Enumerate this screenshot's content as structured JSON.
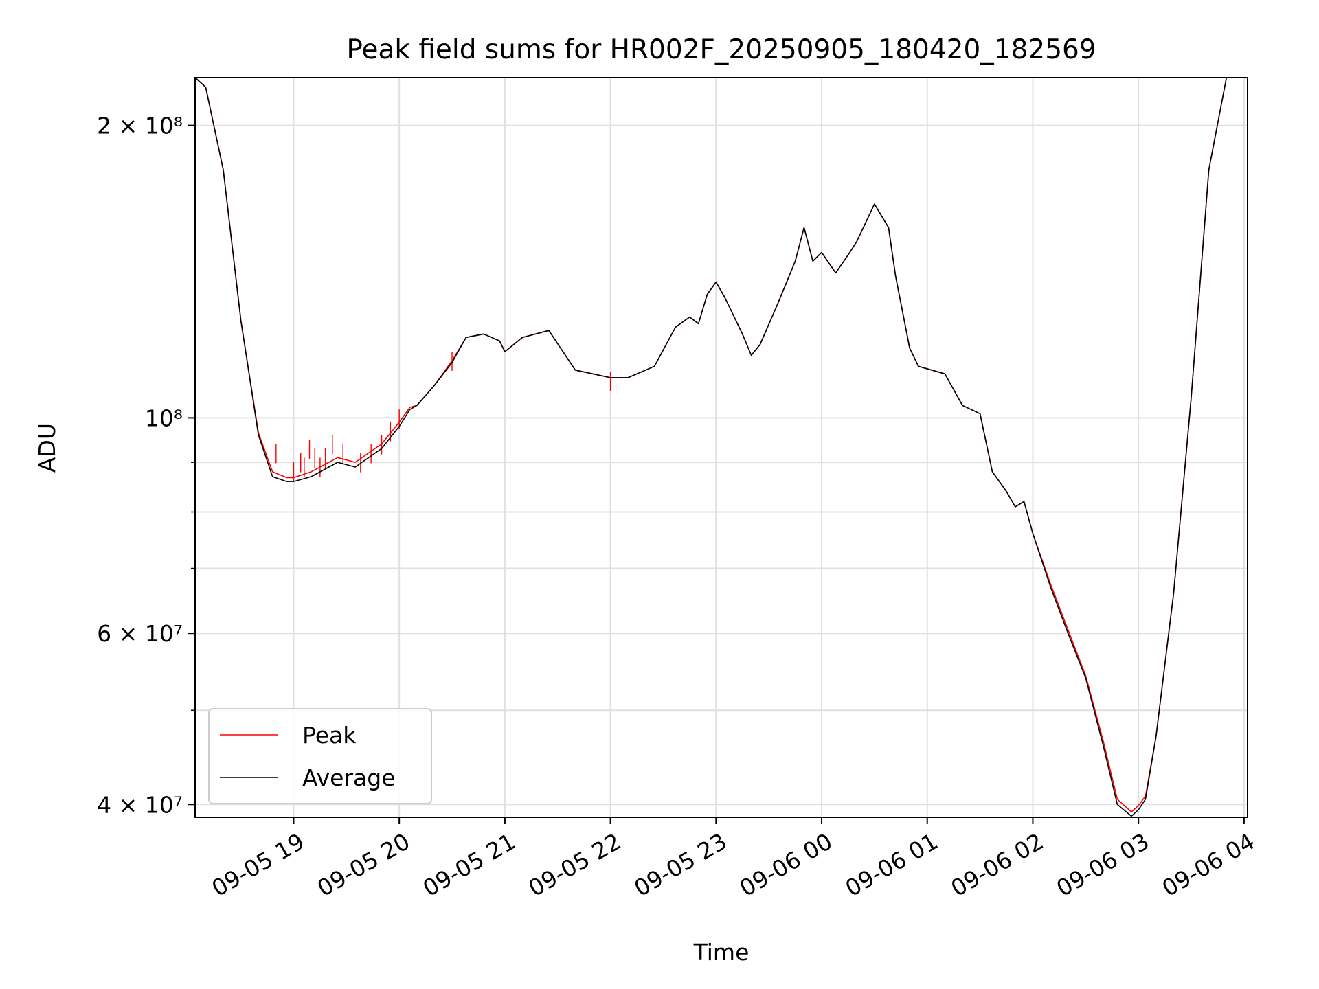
{
  "chart_data": {
    "type": "line",
    "title": "Peak field sums for HR002F_20250905_180420_182569",
    "xlabel": "Time",
    "ylabel": "ADU",
    "yscale": "log",
    "xlim": [
      "2025-09-05 18:04",
      "2025-09-06 04:02"
    ],
    "ylim": [
      38800000,
      224000000
    ],
    "grid": true,
    "legend": "lower-left",
    "x_ticks": [
      {
        "value": "2025-09-05 19:00",
        "label": "09-05 19"
      },
      {
        "value": "2025-09-05 20:00",
        "label": "09-05 20"
      },
      {
        "value": "2025-09-05 21:00",
        "label": "09-05 21"
      },
      {
        "value": "2025-09-05 22:00",
        "label": "09-05 22"
      },
      {
        "value": "2025-09-05 23:00",
        "label": "09-05 23"
      },
      {
        "value": "2025-09-06 00:00",
        "label": "09-06 00"
      },
      {
        "value": "2025-09-06 01:00",
        "label": "09-06 01"
      },
      {
        "value": "2025-09-06 02:00",
        "label": "09-06 02"
      },
      {
        "value": "2025-09-06 03:00",
        "label": "09-06 03"
      },
      {
        "value": "2025-09-06 04:00",
        "label": "09-06 04"
      }
    ],
    "y_ticks": [
      {
        "value": 200000000,
        "label": "2 × 10⁸"
      },
      {
        "value": 100000000,
        "label": "10⁸"
      },
      {
        "value": 60000000,
        "label": "6 × 10⁷"
      },
      {
        "value": 40000000,
        "label": "4 × 10⁷"
      }
    ],
    "y_minor_ticks": [
      50000000,
      70000000,
      80000000,
      90000000
    ],
    "series": [
      {
        "name": "Average",
        "color": "#000000",
        "x": [
          "2025-09-05 18:04",
          "2025-09-05 18:10",
          "2025-09-05 18:20",
          "2025-09-05 18:30",
          "2025-09-05 18:40",
          "2025-09-05 18:48",
          "2025-09-05 18:56",
          "2025-09-05 19:00",
          "2025-09-05 19:10",
          "2025-09-05 19:20",
          "2025-09-05 19:25",
          "2025-09-05 19:35",
          "2025-09-05 19:50",
          "2025-09-05 20:00",
          "2025-09-05 20:06",
          "2025-09-05 20:10",
          "2025-09-05 20:20",
          "2025-09-05 20:30",
          "2025-09-05 20:38",
          "2025-09-05 20:48",
          "2025-09-05 20:57",
          "2025-09-05 21:00",
          "2025-09-05 21:10",
          "2025-09-05 21:25",
          "2025-09-05 21:40",
          "2025-09-05 21:50",
          "2025-09-05 22:00",
          "2025-09-05 22:10",
          "2025-09-05 22:25",
          "2025-09-05 22:37",
          "2025-09-05 22:45",
          "2025-09-05 22:50",
          "2025-09-05 22:55",
          "2025-09-05 23:00",
          "2025-09-05 23:05",
          "2025-09-05 23:15",
          "2025-09-05 23:20",
          "2025-09-05 23:25",
          "2025-09-05 23:35",
          "2025-09-05 23:45",
          "2025-09-05 23:50",
          "2025-09-05 23:55",
          "2025-09-06 00:00",
          "2025-09-06 00:08",
          "2025-09-06 00:16",
          "2025-09-06 00:20",
          "2025-09-06 00:30",
          "2025-09-06 00:38",
          "2025-09-06 00:42",
          "2025-09-06 00:50",
          "2025-09-06 00:55",
          "2025-09-06 01:10",
          "2025-09-06 01:20",
          "2025-09-06 01:30",
          "2025-09-06 01:37",
          "2025-09-06 01:45",
          "2025-09-06 01:50",
          "2025-09-06 01:55",
          "2025-09-06 02:00",
          "2025-09-06 02:10",
          "2025-09-06 02:20",
          "2025-09-06 02:30",
          "2025-09-06 02:40",
          "2025-09-06 02:48",
          "2025-09-06 02:56",
          "2025-09-06 03:00",
          "2025-09-06 03:04",
          "2025-09-06 03:10",
          "2025-09-06 03:20",
          "2025-09-06 03:30",
          "2025-09-06 03:40",
          "2025-09-06 03:50",
          "2025-09-06 04:02"
        ],
        "y": [
          224000000,
          219000000,
          180000000,
          126000000,
          96000000,
          87000000,
          86000000,
          86000000,
          87000000,
          89000000,
          90000000,
          89000000,
          93000000,
          98000000,
          102000000,
          103000000,
          108000000,
          114000000,
          121000000,
          122000000,
          120000000,
          117000000,
          121000000,
          123000000,
          112000000,
          111000000,
          110000000,
          110000000,
          113000000,
          124000000,
          127000000,
          125000000,
          134000000,
          138000000,
          133000000,
          122000000,
          116000000,
          119000000,
          131000000,
          145000000,
          157000000,
          145000000,
          148000000,
          141000000,
          148000000,
          152000000,
          166000000,
          157000000,
          140000000,
          118000000,
          113000000,
          111000000,
          103000000,
          101000000,
          88000000,
          84000000,
          81000000,
          82000000,
          76000000,
          67000000,
          60000000,
          54000000,
          46000000,
          40000000,
          38900000,
          39500000,
          40500000,
          47000000,
          66000000,
          105000000,
          180000000,
          224000000,
          224000000
        ]
      },
      {
        "name": "Peak",
        "color": "#ff0000",
        "x": [
          "2025-09-05 18:04",
          "2025-09-05 18:10",
          "2025-09-05 18:20",
          "2025-09-05 18:30",
          "2025-09-05 18:40",
          "2025-09-05 18:48",
          "2025-09-05 18:56",
          "2025-09-05 19:00",
          "2025-09-05 19:10",
          "2025-09-05 19:20",
          "2025-09-05 19:25",
          "2025-09-05 19:35",
          "2025-09-05 19:50",
          "2025-09-05 20:00",
          "2025-09-05 20:06",
          "2025-09-05 20:10",
          "2025-09-05 20:20",
          "2025-09-05 20:30",
          "2025-09-05 20:38",
          "2025-09-05 20:48",
          "2025-09-05 20:57",
          "2025-09-05 21:00",
          "2025-09-05 21:10",
          "2025-09-05 21:25",
          "2025-09-05 21:40",
          "2025-09-05 21:50",
          "2025-09-05 22:00",
          "2025-09-05 22:10",
          "2025-09-05 22:25",
          "2025-09-05 22:37",
          "2025-09-05 22:45",
          "2025-09-05 22:50",
          "2025-09-05 22:55",
          "2025-09-05 23:00",
          "2025-09-05 23:05",
          "2025-09-05 23:15",
          "2025-09-05 23:20",
          "2025-09-05 23:25",
          "2025-09-05 23:35",
          "2025-09-05 23:45",
          "2025-09-05 23:50",
          "2025-09-05 23:55",
          "2025-09-06 00:00",
          "2025-09-06 00:08",
          "2025-09-06 00:16",
          "2025-09-06 00:20",
          "2025-09-06 00:30",
          "2025-09-06 00:38",
          "2025-09-06 00:42",
          "2025-09-06 00:50",
          "2025-09-06 00:55",
          "2025-09-06 01:10",
          "2025-09-06 01:20",
          "2025-09-06 01:30",
          "2025-09-06 01:37",
          "2025-09-06 01:45",
          "2025-09-06 01:50",
          "2025-09-06 01:55",
          "2025-09-06 02:00",
          "2025-09-06 02:10",
          "2025-09-06 02:20",
          "2025-09-06 02:30",
          "2025-09-06 02:40",
          "2025-09-06 02:48",
          "2025-09-06 02:56",
          "2025-09-06 03:00",
          "2025-09-06 03:04",
          "2025-09-06 03:10",
          "2025-09-06 03:20",
          "2025-09-06 03:30",
          "2025-09-06 03:40",
          "2025-09-06 03:50",
          "2025-09-06 04:02"
        ],
        "y": [
          224000000,
          219000000,
          180000000,
          126000000,
          96500000,
          88000000,
          86800000,
          86800000,
          88000000,
          90000000,
          91000000,
          90000000,
          94000000,
          99000000,
          102500000,
          103000000,
          108000000,
          114500000,
          121000000,
          122000000,
          120000000,
          117000000,
          121000000,
          123000000,
          112000000,
          111000000,
          110000000,
          110000000,
          113000000,
          124000000,
          127000000,
          125000000,
          134000000,
          138000000,
          133000000,
          122000000,
          116000000,
          119000000,
          131000000,
          145000000,
          157000000,
          145000000,
          148000000,
          141000000,
          148000000,
          152000000,
          166000000,
          157000000,
          140000000,
          118000000,
          113000000,
          111000000,
          103000000,
          101000000,
          88000000,
          84000000,
          81000000,
          82000000,
          76000000,
          67500000,
          60500000,
          54300000,
          46500000,
          40500000,
          39300000,
          39900000,
          40800000,
          47000000,
          66000000,
          105000000,
          180000000,
          224000000,
          224000000
        ],
        "spikes": [
          {
            "x": "2025-09-05 18:50",
            "y": 94000000
          },
          {
            "x": "2025-09-05 19:00",
            "y": 90000000
          },
          {
            "x": "2025-09-05 19:04",
            "y": 92000000
          },
          {
            "x": "2025-09-05 19:06",
            "y": 91000000
          },
          {
            "x": "2025-09-05 19:09",
            "y": 95000000
          },
          {
            "x": "2025-09-05 19:12",
            "y": 93000000
          },
          {
            "x": "2025-09-05 19:15",
            "y": 91000000
          },
          {
            "x": "2025-09-05 19:18",
            "y": 93000000
          },
          {
            "x": "2025-09-05 19:22",
            "y": 96000000
          },
          {
            "x": "2025-09-05 19:28",
            "y": 94000000
          },
          {
            "x": "2025-09-05 19:38",
            "y": 92000000
          },
          {
            "x": "2025-09-05 19:44",
            "y": 94000000
          },
          {
            "x": "2025-09-05 19:50",
            "y": 96000000
          },
          {
            "x": "2025-09-05 19:55",
            "y": 99000000
          },
          {
            "x": "2025-09-05 20:00",
            "y": 102000000
          },
          {
            "x": "2025-09-05 20:30",
            "y": 117000000
          },
          {
            "x": "2025-09-05 22:00",
            "y": 111500000
          }
        ]
      }
    ]
  }
}
